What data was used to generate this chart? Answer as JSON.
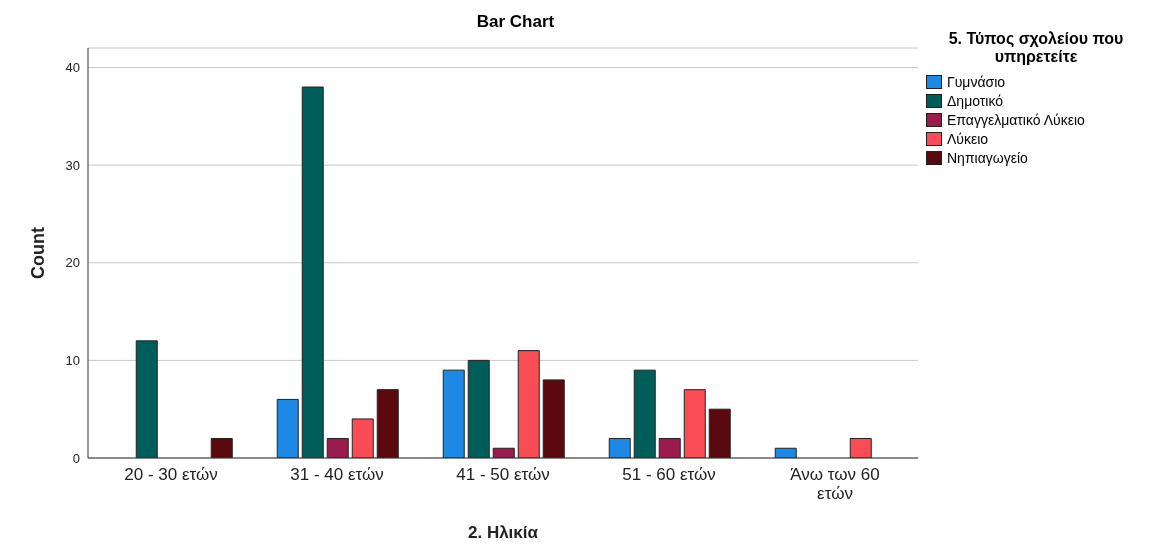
{
  "chart_data": {
    "type": "bar",
    "title": "Bar Chart",
    "xlabel": "2. Ηλικία",
    "ylabel": "Count",
    "legend_title": "5. Τύπος σχολείου που υπηρετείτε",
    "categories": [
      "20 - 30 ετών",
      "31 - 40 ετών",
      "41 - 50 ετών",
      "51 - 60 ετών",
      "Άνω των 60 ετών"
    ],
    "series": [
      {
        "name": "Γυμνάσιο",
        "color": "#1e88e5",
        "values": [
          0,
          6,
          9,
          2,
          1
        ]
      },
      {
        "name": "Δημοτικό",
        "color": "#005e5a",
        "values": [
          12,
          38,
          10,
          9,
          0
        ]
      },
      {
        "name": "Επαγγελματικό Λύκειο",
        "color": "#9b1b4f",
        "values": [
          0,
          2,
          1,
          2,
          0
        ]
      },
      {
        "name": "Λύκειο",
        "color": "#f94c55",
        "values": [
          0,
          4,
          11,
          7,
          2
        ]
      },
      {
        "name": "Νηπιαγωγείο",
        "color": "#5a0a0e",
        "values": [
          2,
          7,
          8,
          5,
          0
        ]
      }
    ],
    "ylim": [
      0,
      42
    ],
    "yticks": [
      0,
      10,
      20,
      30,
      40
    ],
    "grid": "y",
    "legend": "top right"
  }
}
